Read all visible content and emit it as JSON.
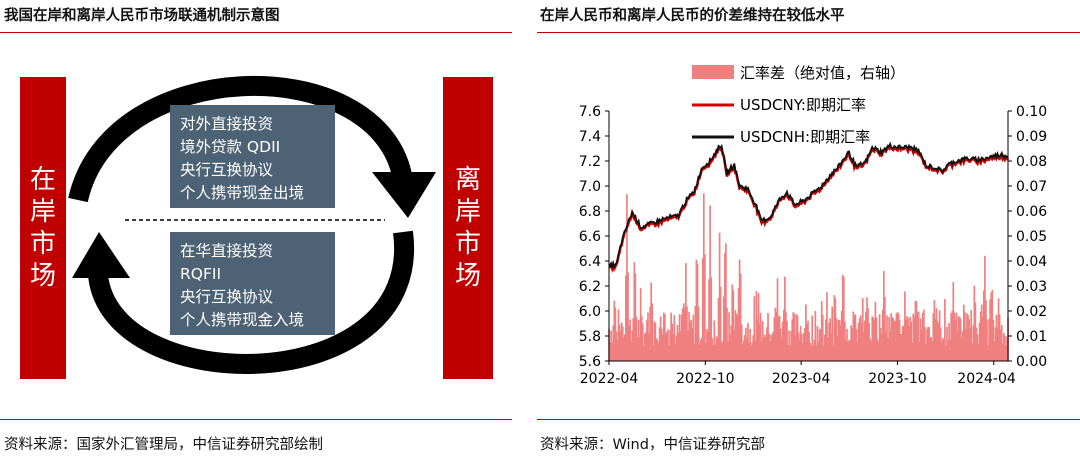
{
  "left_panel": {
    "title": "我国在岸和离岸人民币市场联通机制示意图",
    "source": "资料来源：国家外汇管理局，中信证券研究部绘制",
    "onshore_label": "在岸市场",
    "offshore_label": "离岸市场",
    "outbound_items": [
      "对外直接投资",
      "境外贷款 QDII",
      "央行互换协议",
      "个人携带现金出境"
    ],
    "inbound_items": [
      "在华直接投资",
      "RQFII",
      "央行互换协议",
      "个人携带现金入境"
    ],
    "colors": {
      "bar": "#c00000",
      "box": "#4d6275",
      "arrow": "#000000"
    }
  },
  "right_panel": {
    "title": "在岸人民币和离岸人民币的价差维持在较低水平",
    "source": "资料来源：Wind，中信证券研究部"
  },
  "chart_data": {
    "type": "line",
    "x_ticks": [
      "2022-04",
      "2022-10",
      "2023-04",
      "2023-10",
      "2024-04"
    ],
    "y_left": {
      "min": 5.6,
      "max": 7.6,
      "ticks": [
        "7.6",
        "7.4",
        "7.2",
        "7.0",
        "6.8",
        "6.6",
        "6.4",
        "6.2",
        "6.0",
        "5.8",
        "5.6"
      ]
    },
    "y_right": {
      "min": 0.0,
      "max": 0.1,
      "ticks": [
        "0.10",
        "0.09",
        "0.08",
        "0.07",
        "0.06",
        "0.05",
        "0.04",
        "0.03",
        "0.02",
        "0.01",
        "0.00"
      ]
    },
    "legend": [
      "汇率差（绝对值，右轴）",
      "USDCNY:即期汇率",
      "USDCNH:即期汇率"
    ],
    "series_colors": {
      "spread": "#f08080",
      "cny": "#d40000",
      "cnh": "#111111"
    },
    "cnh_anchors": [
      [
        "2022-04-01",
        6.36
      ],
      [
        "2022-04-15",
        6.37
      ],
      [
        "2022-04-25",
        6.55
      ],
      [
        "2022-05-05",
        6.68
      ],
      [
        "2022-05-15",
        6.79
      ],
      [
        "2022-06-01",
        6.67
      ],
      [
        "2022-06-20",
        6.7
      ],
      [
        "2022-07-10",
        6.73
      ],
      [
        "2022-07-25",
        6.75
      ],
      [
        "2022-08-10",
        6.76
      ],
      [
        "2022-08-25",
        6.88
      ],
      [
        "2022-09-10",
        6.96
      ],
      [
        "2022-09-25",
        7.15
      ],
      [
        "2022-10-10",
        7.2
      ],
      [
        "2022-10-25",
        7.3
      ],
      [
        "2022-11-01",
        7.33
      ],
      [
        "2022-11-10",
        7.1
      ],
      [
        "2022-11-25",
        7.17
      ],
      [
        "2022-12-05",
        7.0
      ],
      [
        "2022-12-20",
        6.98
      ],
      [
        "2023-01-05",
        6.85
      ],
      [
        "2023-01-15",
        6.72
      ],
      [
        "2023-02-01",
        6.75
      ],
      [
        "2023-02-20",
        6.9
      ],
      [
        "2023-03-05",
        6.95
      ],
      [
        "2023-03-20",
        6.85
      ],
      [
        "2023-04-05",
        6.88
      ],
      [
        "2023-04-20",
        6.93
      ],
      [
        "2023-05-10",
        7.0
      ],
      [
        "2023-05-25",
        7.08
      ],
      [
        "2023-06-10",
        7.15
      ],
      [
        "2023-06-30",
        7.27
      ],
      [
        "2023-07-15",
        7.15
      ],
      [
        "2023-08-01",
        7.19
      ],
      [
        "2023-08-15",
        7.31
      ],
      [
        "2023-09-01",
        7.27
      ],
      [
        "2023-09-15",
        7.32
      ],
      [
        "2023-10-05",
        7.31
      ],
      [
        "2023-10-25",
        7.31
      ],
      [
        "2023-11-10",
        7.28
      ],
      [
        "2023-11-25",
        7.16
      ],
      [
        "2023-12-10",
        7.15
      ],
      [
        "2023-12-25",
        7.12
      ],
      [
        "2024-01-05",
        7.17
      ],
      [
        "2024-01-20",
        7.2
      ],
      [
        "2024-02-10",
        7.22
      ],
      [
        "2024-03-01",
        7.21
      ],
      [
        "2024-03-15",
        7.22
      ],
      [
        "2024-04-01",
        7.24
      ],
      [
        "2024-04-15",
        7.25
      ],
      [
        "2024-04-25",
        7.24
      ]
    ],
    "spread_peaks": [
      [
        "2022-04-12",
        0.033
      ],
      [
        "2022-05-05",
        0.068
      ],
      [
        "2022-05-20",
        0.05
      ],
      [
        "2022-06-20",
        0.035
      ],
      [
        "2022-07-15",
        0.03
      ],
      [
        "2022-08-25",
        0.04
      ],
      [
        "2022-09-15",
        0.055
      ],
      [
        "2022-09-28",
        0.07
      ],
      [
        "2022-10-10",
        0.072
      ],
      [
        "2022-10-28",
        0.052
      ],
      [
        "2022-11-08",
        0.065
      ],
      [
        "2022-11-22",
        0.04
      ],
      [
        "2022-12-05",
        0.05
      ],
      [
        "2023-01-10",
        0.03
      ],
      [
        "2023-02-15",
        0.035
      ],
      [
        "2023-03-01",
        0.044
      ],
      [
        "2023-04-10",
        0.025
      ],
      [
        "2023-05-10",
        0.022
      ],
      [
        "2023-06-05",
        0.03
      ],
      [
        "2023-06-20",
        0.05
      ],
      [
        "2023-07-10",
        0.025
      ],
      [
        "2023-08-05",
        0.028
      ],
      [
        "2023-08-20",
        0.03
      ],
      [
        "2023-09-05",
        0.044
      ],
      [
        "2023-09-20",
        0.025
      ],
      [
        "2023-10-15",
        0.03
      ],
      [
        "2023-11-05",
        0.035
      ],
      [
        "2023-11-20",
        0.025
      ],
      [
        "2023-12-10",
        0.028
      ],
      [
        "2024-01-15",
        0.035
      ],
      [
        "2024-02-05",
        0.03
      ],
      [
        "2024-02-25",
        0.038
      ],
      [
        "2024-03-15",
        0.047
      ],
      [
        "2024-03-28",
        0.036
      ],
      [
        "2024-04-10",
        0.028
      ]
    ]
  }
}
